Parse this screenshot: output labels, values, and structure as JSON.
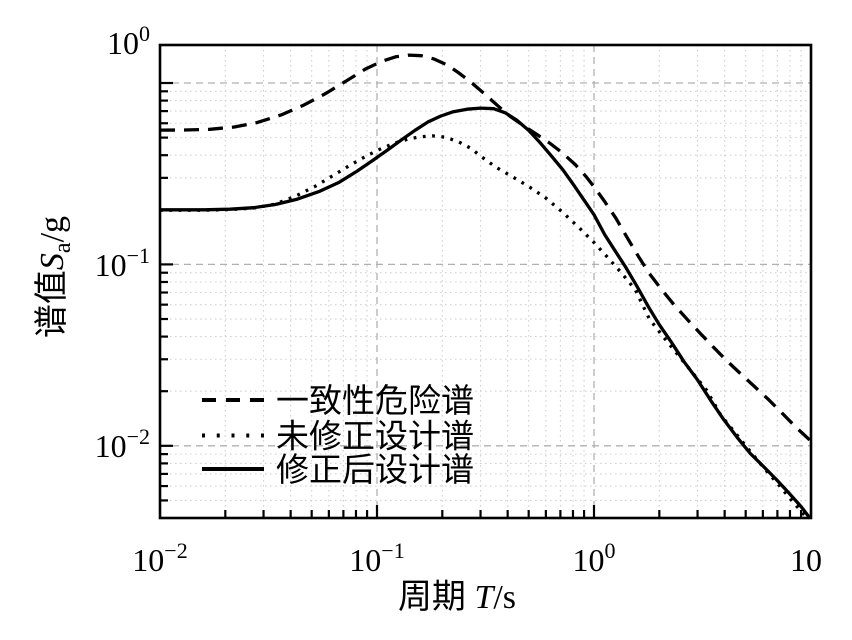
{
  "figure": {
    "background": "#ffffff"
  },
  "colors": {
    "curve": "#000000",
    "axis": "#000000",
    "text": "#000000",
    "grid_major": "#b0b0b0",
    "grid_minor": "#d2d2d2"
  },
  "axes": {
    "x": {
      "title": {
        "prefix": "周期 ",
        "italic": "T",
        "suffix": "/s"
      },
      "ticks": [
        {
          "base": "10",
          "sup": "−2"
        },
        {
          "base": "10",
          "sup": "−1"
        },
        {
          "base": "10",
          "sup": "0"
        },
        {
          "base": "10",
          "sup": ""
        }
      ]
    },
    "y": {
      "title": {
        "prefix": "谱值",
        "italic": "S",
        "sub": "a",
        "suffix": "/g"
      },
      "ticks": [
        {
          "base": "10",
          "sup": "0"
        },
        {
          "base": "10",
          "sup": "−1"
        },
        {
          "base": "10",
          "sup": "−2"
        }
      ]
    }
  },
  "legend": {
    "items": [
      {
        "label": "一致性危险谱",
        "style": "dashed"
      },
      {
        "label": "未修正设计谱",
        "style": "dotted"
      },
      {
        "label": "修正后设计谱",
        "style": "solid"
      }
    ]
  },
  "chart_data": {
    "type": "line",
    "title": "",
    "xlabel": "周期 T/s",
    "ylabel": "谱值 Sa/g",
    "xscale": "log",
    "yscale": "log",
    "xlim": [
      0.01,
      10
    ],
    "ylim": [
      0.004,
      1.62
    ],
    "grid": true,
    "legend_position": "lower-left",
    "series": [
      {
        "name": "一致性危险谱",
        "id": "uniform-hazard-spectrum",
        "line_style": "dashed",
        "color": "#000000",
        "points": [
          [
            0.01,
            0.55
          ],
          [
            0.013,
            0.551
          ],
          [
            0.017,
            0.556
          ],
          [
            0.022,
            0.572
          ],
          [
            0.028,
            0.605
          ],
          [
            0.036,
            0.665
          ],
          [
            0.046,
            0.755
          ],
          [
            0.058,
            0.875
          ],
          [
            0.072,
            1.025
          ],
          [
            0.088,
            1.19
          ],
          [
            0.105,
            1.315
          ],
          [
            0.122,
            1.395
          ],
          [
            0.14,
            1.425
          ],
          [
            0.16,
            1.415
          ],
          [
            0.182,
            1.36
          ],
          [
            0.21,
            1.26
          ],
          [
            0.24,
            1.13
          ],
          [
            0.275,
            0.995
          ],
          [
            0.315,
            0.865
          ],
          [
            0.36,
            0.75
          ],
          [
            0.41,
            0.655
          ],
          [
            0.47,
            0.585
          ],
          [
            0.54,
            0.525
          ],
          [
            0.62,
            0.47
          ],
          [
            0.71,
            0.415
          ],
          [
            0.82,
            0.355
          ],
          [
            0.92,
            0.305
          ],
          [
            1.0,
            0.268
          ],
          [
            1.12,
            0.222
          ],
          [
            1.26,
            0.18
          ],
          [
            1.42,
            0.141
          ],
          [
            1.6,
            0.111
          ],
          [
            1.8,
            0.089
          ],
          [
            2.05,
            0.0725
          ],
          [
            2.35,
            0.0595
          ],
          [
            2.7,
            0.0495
          ],
          [
            3.1,
            0.0415
          ],
          [
            3.55,
            0.035
          ],
          [
            4.05,
            0.0298
          ],
          [
            4.7,
            0.0252
          ],
          [
            5.45,
            0.0214
          ],
          [
            6.3,
            0.0182
          ],
          [
            7.3,
            0.0153
          ],
          [
            8.5,
            0.0127
          ],
          [
            10.0,
            0.0106
          ]
        ]
      },
      {
        "name": "未修正设计谱",
        "id": "uncorrected-design-spectrum",
        "line_style": "dotted",
        "color": "#000000",
        "points": [
          [
            0.01,
            0.199
          ],
          [
            0.016,
            0.199
          ],
          [
            0.021,
            0.2005
          ],
          [
            0.027,
            0.2045
          ],
          [
            0.034,
            0.215
          ],
          [
            0.042,
            0.2375
          ],
          [
            0.052,
            0.27
          ],
          [
            0.063,
            0.31
          ],
          [
            0.076,
            0.355
          ],
          [
            0.09,
            0.398
          ],
          [
            0.105,
            0.436
          ],
          [
            0.122,
            0.468
          ],
          [
            0.14,
            0.492
          ],
          [
            0.16,
            0.506
          ],
          [
            0.18,
            0.511
          ],
          [
            0.205,
            0.503
          ],
          [
            0.235,
            0.478
          ],
          [
            0.27,
            0.437
          ],
          [
            0.305,
            0.39
          ],
          [
            0.355,
            0.342
          ],
          [
            0.42,
            0.305
          ],
          [
            0.5,
            0.269
          ],
          [
            0.6,
            0.232
          ],
          [
            0.72,
            0.193
          ],
          [
            0.86,
            0.158
          ],
          [
            1.0,
            0.132
          ],
          [
            1.15,
            0.11
          ],
          [
            1.33,
            0.0905
          ],
          [
            1.55,
            0.0725
          ],
          [
            1.8,
            0.05
          ],
          [
            2.1,
            0.0395
          ],
          [
            2.45,
            0.0315
          ],
          [
            2.85,
            0.0252
          ],
          [
            3.3,
            0.0203
          ],
          [
            3.85,
            0.0147
          ],
          [
            4.5,
            0.0117
          ],
          [
            5.25,
            0.0093
          ],
          [
            6.1,
            0.0075
          ],
          [
            7.1,
            0.0061
          ],
          [
            8.25,
            0.0049
          ],
          [
            9.6,
            0.004
          ]
        ]
      },
      {
        "name": "修正后设计谱",
        "id": "corrected-design-spectrum",
        "line_style": "solid",
        "color": "#000000",
        "points": [
          [
            0.01,
            0.2
          ],
          [
            0.016,
            0.2
          ],
          [
            0.021,
            0.2015
          ],
          [
            0.027,
            0.2055
          ],
          [
            0.034,
            0.214
          ],
          [
            0.043,
            0.229
          ],
          [
            0.054,
            0.252
          ],
          [
            0.067,
            0.284
          ],
          [
            0.081,
            0.327
          ],
          [
            0.096,
            0.376
          ],
          [
            0.112,
            0.428
          ],
          [
            0.13,
            0.487
          ],
          [
            0.15,
            0.549
          ],
          [
            0.172,
            0.61
          ],
          [
            0.197,
            0.658
          ],
          [
            0.225,
            0.695
          ],
          [
            0.26,
            0.717
          ],
          [
            0.3,
            0.727
          ],
          [
            0.345,
            0.722
          ],
          [
            0.39,
            0.685
          ],
          [
            0.44,
            0.625
          ],
          [
            0.5,
            0.548
          ],
          [
            0.565,
            0.468
          ],
          [
            0.64,
            0.393
          ],
          [
            0.72,
            0.332
          ],
          [
            0.81,
            0.272
          ],
          [
            0.9,
            0.226
          ],
          [
            1.0,
            0.188
          ],
          [
            1.12,
            0.146
          ],
          [
            1.25,
            0.119
          ],
          [
            1.4,
            0.0965
          ],
          [
            1.58,
            0.0755
          ],
          [
            1.78,
            0.0585
          ],
          [
            2.0,
            0.0465
          ],
          [
            2.28,
            0.037
          ],
          [
            2.6,
            0.0291
          ],
          [
            3.0,
            0.0231
          ],
          [
            3.45,
            0.0178
          ],
          [
            3.95,
            0.014
          ],
          [
            4.55,
            0.0112
          ],
          [
            5.25,
            0.00907
          ],
          [
            6.0,
            0.00775
          ],
          [
            6.9,
            0.00655
          ],
          [
            7.9,
            0.0055
          ],
          [
            9.0,
            0.00462
          ],
          [
            9.9,
            0.00398
          ]
        ]
      }
    ]
  }
}
